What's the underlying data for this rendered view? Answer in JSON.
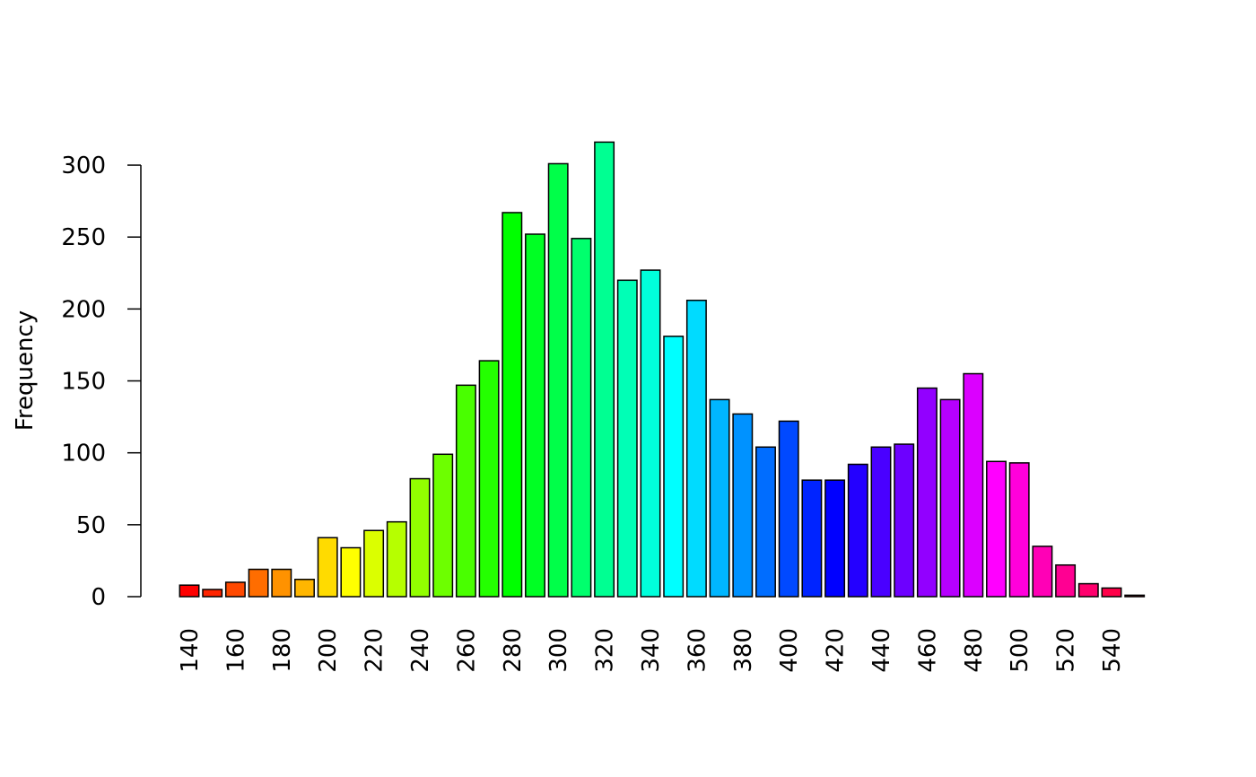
{
  "chart_data": {
    "type": "bar",
    "y_label": "Frequency",
    "categories": [
      "140",
      null,
      "160",
      null,
      "180",
      null,
      "200",
      null,
      "220",
      null,
      "240",
      null,
      "260",
      null,
      "280",
      null,
      "300",
      null,
      "320",
      null,
      "340",
      null,
      "360",
      null,
      "380",
      null,
      "400",
      null,
      "420",
      null,
      "440",
      null,
      "460",
      null,
      "480",
      null,
      "500",
      null,
      "520",
      null,
      "540",
      null
    ],
    "values": [
      8,
      5,
      10,
      19,
      19,
      12,
      41,
      34,
      46,
      52,
      82,
      99,
      147,
      164,
      267,
      252,
      301,
      249,
      316,
      220,
      227,
      181,
      206,
      137,
      127,
      104,
      122,
      81,
      81,
      92,
      104,
      106,
      145,
      137,
      155,
      94,
      93,
      35,
      22,
      9,
      6,
      1
    ],
    "color_scheme": "rainbow",
    "ylim": [
      0,
      316
    ],
    "yticks": [
      0,
      50,
      100,
      150,
      200,
      250,
      300
    ],
    "grid": false
  }
}
